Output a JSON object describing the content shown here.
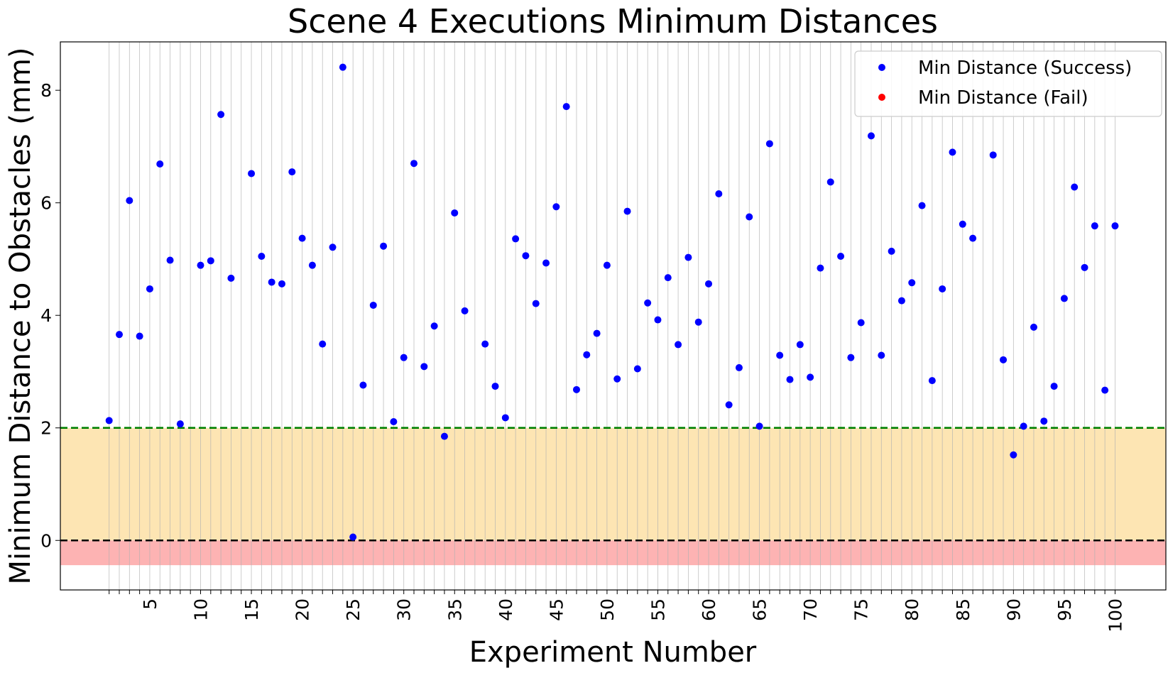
{
  "chart_data": {
    "type": "scatter",
    "title": "Scene 4 Executions Minimum Distances",
    "xlabel": "Experiment Number",
    "ylabel": "Minimum Distance to Obstacles (mm)",
    "xlim": [
      -3.8,
      105.0
    ],
    "ylim": [
      -0.88,
      8.86
    ],
    "x_ticks": [
      5,
      10,
      15,
      20,
      25,
      30,
      35,
      40,
      45,
      50,
      55,
      60,
      65,
      70,
      75,
      80,
      85,
      90,
      95,
      100
    ],
    "x_tick_labels": [
      "5",
      "10",
      "15",
      "20",
      "25",
      "30",
      "35",
      "40",
      "45",
      "50",
      "55",
      "60",
      "65",
      "70",
      "75",
      "80",
      "85",
      "90",
      "95",
      "100"
    ],
    "x_tick_rotation": "vertical",
    "y_ticks": [
      0,
      2,
      4,
      6,
      8
    ],
    "y_tick_labels": [
      "0",
      "2",
      "4",
      "6",
      "8"
    ],
    "grid": "vertical lines at every experiment 1-100",
    "legend_position": "top-right",
    "threshold_lines": [
      {
        "y": 2,
        "color": "#008000",
        "style": "dashed"
      },
      {
        "y": 0,
        "color": "#000000",
        "style": "dashed"
      }
    ],
    "bands": [
      {
        "from": 0,
        "to": 2,
        "color": "#fde5b3"
      },
      {
        "from": -0.44,
        "to": 0,
        "color": "#fdb3b3"
      }
    ],
    "series": [
      {
        "name": "Min Distance (Success)",
        "color": "#0000ff",
        "x": [
          1,
          2,
          3,
          4,
          5,
          6,
          7,
          8,
          10,
          11,
          12,
          13,
          15,
          16,
          17,
          18,
          19,
          20,
          21,
          22,
          23,
          24,
          25,
          26,
          27,
          28,
          29,
          30,
          31,
          32,
          33,
          34,
          35,
          36,
          38,
          39,
          40,
          41,
          42,
          43,
          44,
          45,
          46,
          47,
          48,
          49,
          50,
          51,
          52,
          53,
          54,
          55,
          56,
          57,
          58,
          59,
          60,
          61,
          62,
          63,
          64,
          65,
          66,
          67,
          68,
          69,
          70,
          71,
          72,
          73,
          74,
          75,
          76,
          77,
          78,
          79,
          80,
          81,
          82,
          83,
          84,
          85,
          86,
          88,
          89,
          90,
          91,
          92,
          93,
          94,
          95,
          96,
          97,
          98,
          99,
          100
        ],
        "y": [
          2.13,
          3.66,
          6.04,
          3.63,
          4.47,
          6.69,
          4.98,
          2.07,
          4.89,
          4.97,
          7.57,
          4.66,
          6.52,
          5.05,
          4.59,
          4.56,
          6.55,
          5.37,
          4.89,
          3.49,
          5.21,
          8.41,
          0.06,
          2.76,
          4.18,
          5.23,
          2.11,
          3.25,
          6.7,
          3.09,
          3.81,
          1.85,
          5.82,
          4.08,
          3.49,
          2.74,
          2.18,
          5.36,
          5.06,
          4.21,
          4.93,
          5.93,
          7.71,
          2.68,
          3.3,
          3.68,
          4.89,
          2.87,
          5.85,
          3.05,
          4.22,
          3.92,
          4.67,
          3.48,
          5.03,
          3.88,
          4.56,
          6.16,
          2.41,
          3.07,
          5.75,
          2.03,
          7.05,
          3.29,
          2.86,
          3.48,
          2.9,
          4.84,
          6.37,
          5.05,
          3.25,
          3.87,
          7.19,
          3.29,
          5.14,
          4.26,
          4.58,
          5.95,
          2.84,
          4.47,
          6.9,
          5.62,
          5.37,
          6.85,
          3.21,
          1.52,
          2.03,
          3.79,
          2.12,
          2.74,
          4.3,
          6.28,
          4.85,
          5.59,
          2.67,
          5.59
        ]
      },
      {
        "name": "Min Distance (Fail)",
        "color": "#ff0000",
        "x": [],
        "y": []
      }
    ]
  }
}
